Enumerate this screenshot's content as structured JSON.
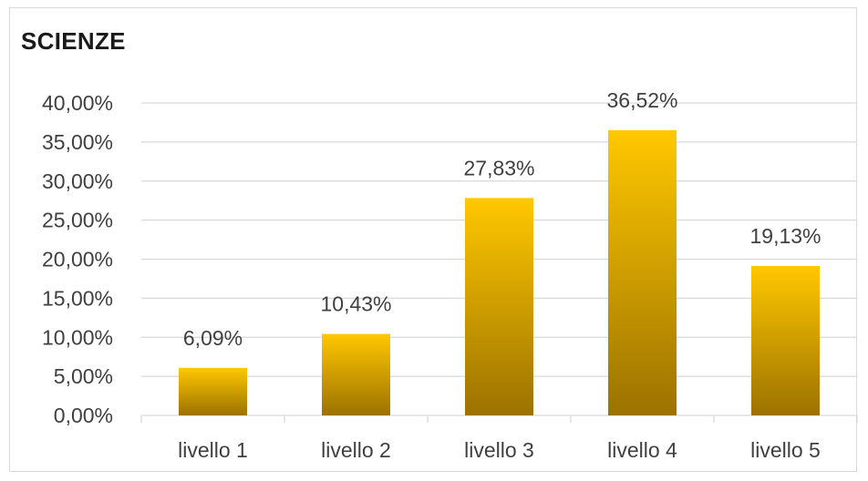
{
  "chart_data": {
    "type": "bar",
    "title": "SCIENZE",
    "categories": [
      "livello 1",
      "livello 2",
      "livello 3",
      "livello 4",
      "livello 5"
    ],
    "values": [
      6.09,
      10.43,
      27.83,
      36.52,
      19.13
    ],
    "data_labels": [
      "6,09%",
      "10,43%",
      "27,83%",
      "36,52%",
      "19,13%"
    ],
    "ylim": [
      0,
      40
    ],
    "yticks": [
      0,
      5,
      10,
      15,
      20,
      25,
      30,
      35,
      40
    ],
    "ytick_labels": [
      "0,00%",
      "5,00%",
      "10,00%",
      "15,00%",
      "20,00%",
      "25,00%",
      "30,00%",
      "35,00%",
      "40,00%"
    ],
    "xlabel": "",
    "ylabel": "",
    "grid": true,
    "legend": "none",
    "colors": {
      "bar_top": "#FFC800",
      "bar_bottom": "#9C7200",
      "grid": "#d9d9d9",
      "text": "#404040"
    }
  }
}
